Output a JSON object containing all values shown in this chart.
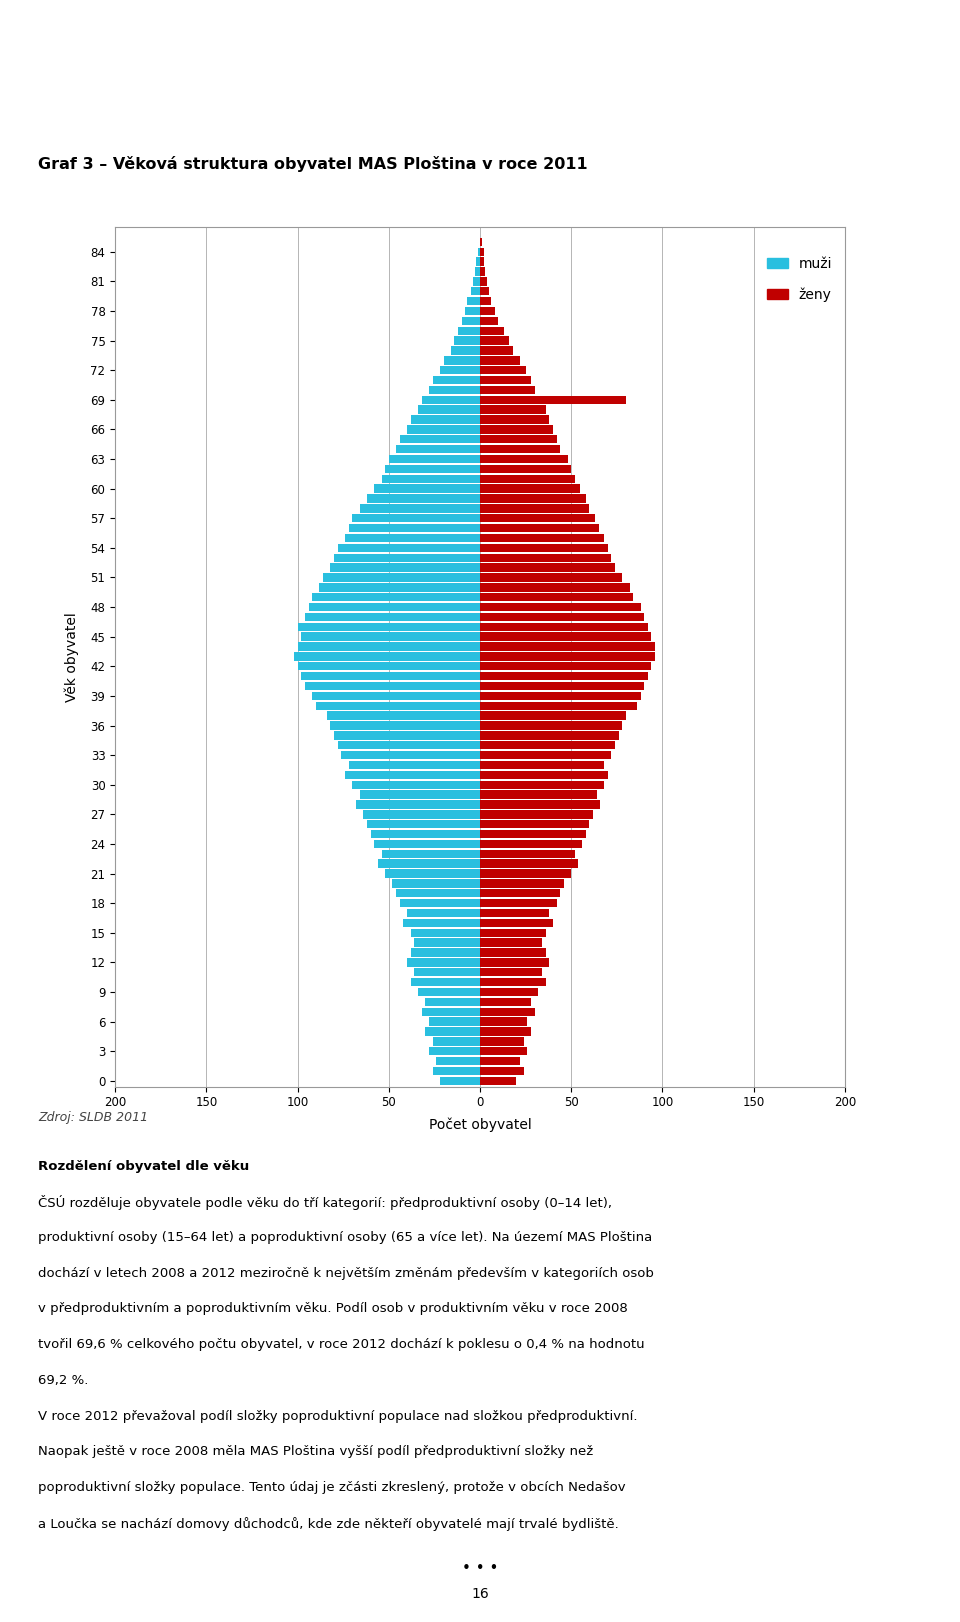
{
  "title": "Graf 3 – Věková struktura obyvatel MAS Ploština v roce 2011",
  "xlabel": "Počet obyvatel",
  "ylabel": "Věk obyvatel",
  "source": "Zdroj: SLDB 2011",
  "legend_muzi": "muži",
  "legend_zeny": "ženy",
  "color_muzi": "#29BFDF",
  "color_zeny": "#C00000",
  "ages": [
    0,
    1,
    2,
    3,
    4,
    5,
    6,
    7,
    8,
    9,
    10,
    11,
    12,
    13,
    14,
    15,
    16,
    17,
    18,
    19,
    20,
    21,
    22,
    23,
    24,
    25,
    26,
    27,
    28,
    29,
    30,
    31,
    32,
    33,
    34,
    35,
    36,
    37,
    38,
    39,
    40,
    41,
    42,
    43,
    44,
    45,
    46,
    47,
    48,
    49,
    50,
    51,
    52,
    53,
    54,
    55,
    56,
    57,
    58,
    59,
    60,
    61,
    62,
    63,
    64,
    65,
    66,
    67,
    68,
    69,
    70,
    71,
    72,
    73,
    74,
    75,
    76,
    77,
    78,
    79,
    80,
    81,
    82,
    83,
    84,
    85
  ],
  "muzi": [
    22,
    26,
    24,
    28,
    26,
    30,
    28,
    32,
    30,
    34,
    38,
    36,
    40,
    38,
    36,
    38,
    42,
    40,
    44,
    46,
    48,
    52,
    56,
    54,
    58,
    60,
    62,
    64,
    68,
    66,
    70,
    74,
    72,
    76,
    78,
    80,
    82,
    84,
    90,
    92,
    96,
    98,
    100,
    102,
    100,
    98,
    100,
    96,
    94,
    92,
    88,
    86,
    82,
    80,
    78,
    74,
    72,
    70,
    66,
    62,
    58,
    54,
    52,
    50,
    46,
    44,
    40,
    38,
    34,
    32,
    28,
    26,
    22,
    20,
    16,
    14,
    12,
    10,
    8,
    7,
    5,
    4,
    3,
    2,
    1,
    0
  ],
  "zeny": [
    20,
    24,
    22,
    26,
    24,
    28,
    26,
    30,
    28,
    32,
    36,
    34,
    38,
    36,
    34,
    36,
    40,
    38,
    42,
    44,
    46,
    50,
    54,
    52,
    56,
    58,
    60,
    62,
    66,
    64,
    68,
    70,
    68,
    72,
    74,
    76,
    78,
    80,
    86,
    88,
    90,
    92,
    94,
    96,
    96,
    94,
    92,
    90,
    88,
    84,
    82,
    78,
    74,
    72,
    70,
    68,
    65,
    63,
    60,
    58,
    55,
    52,
    50,
    48,
    44,
    42,
    40,
    38,
    36,
    80,
    30,
    28,
    25,
    22,
    18,
    16,
    13,
    10,
    8,
    6,
    5,
    4,
    3,
    2,
    2,
    1
  ],
  "xlim": 200,
  "bar_height": 0.85,
  "figsize": [
    9.6,
    16.22
  ],
  "dpi": 100,
  "footnote_lines": [
    [
      "Rozdělení obyvatel dle věku",
      true
    ],
    [
      "ČSÚ rozděluje obyvatele podle věku do tří kategorií: předproduktivní osoby (0–14 let),",
      false
    ],
    [
      "produktivní osoby (15–64 let) a poproduktivní osoby (65 a více let). Na úezemí MAS Ploština",
      false
    ],
    [
      "dochází v letech 2008 a 2012 meziročně k největším změnám především v kategoriích osob",
      false
    ],
    [
      "v předproduktivním a poproduktivním věku. Podíl osob v produktivním věku v roce 2008",
      false
    ],
    [
      "tvořil 69,6 % celkového počtu obyvatel, v roce 2012 dochází k poklesu o 0,4 % na hodnotu",
      false
    ],
    [
      "69,2 %.",
      false
    ],
    [
      "V roce 2012 převažoval podíl složky poproduktivní populace nad složkou předproduktivní.",
      false
    ],
    [
      "Naopak ještě v roce 2008 měla MAS Ploština vyšší podíl předproduktivní složky než",
      false
    ],
    [
      "poproduktivní složky populace. Tento údaj je zčásti zkreslený, protože v obcích Nedašov",
      false
    ],
    [
      "a Loučka se nachází domovy důchodců, kde zde někteří obyvatelé mají trvalé bydliště.",
      false
    ]
  ]
}
